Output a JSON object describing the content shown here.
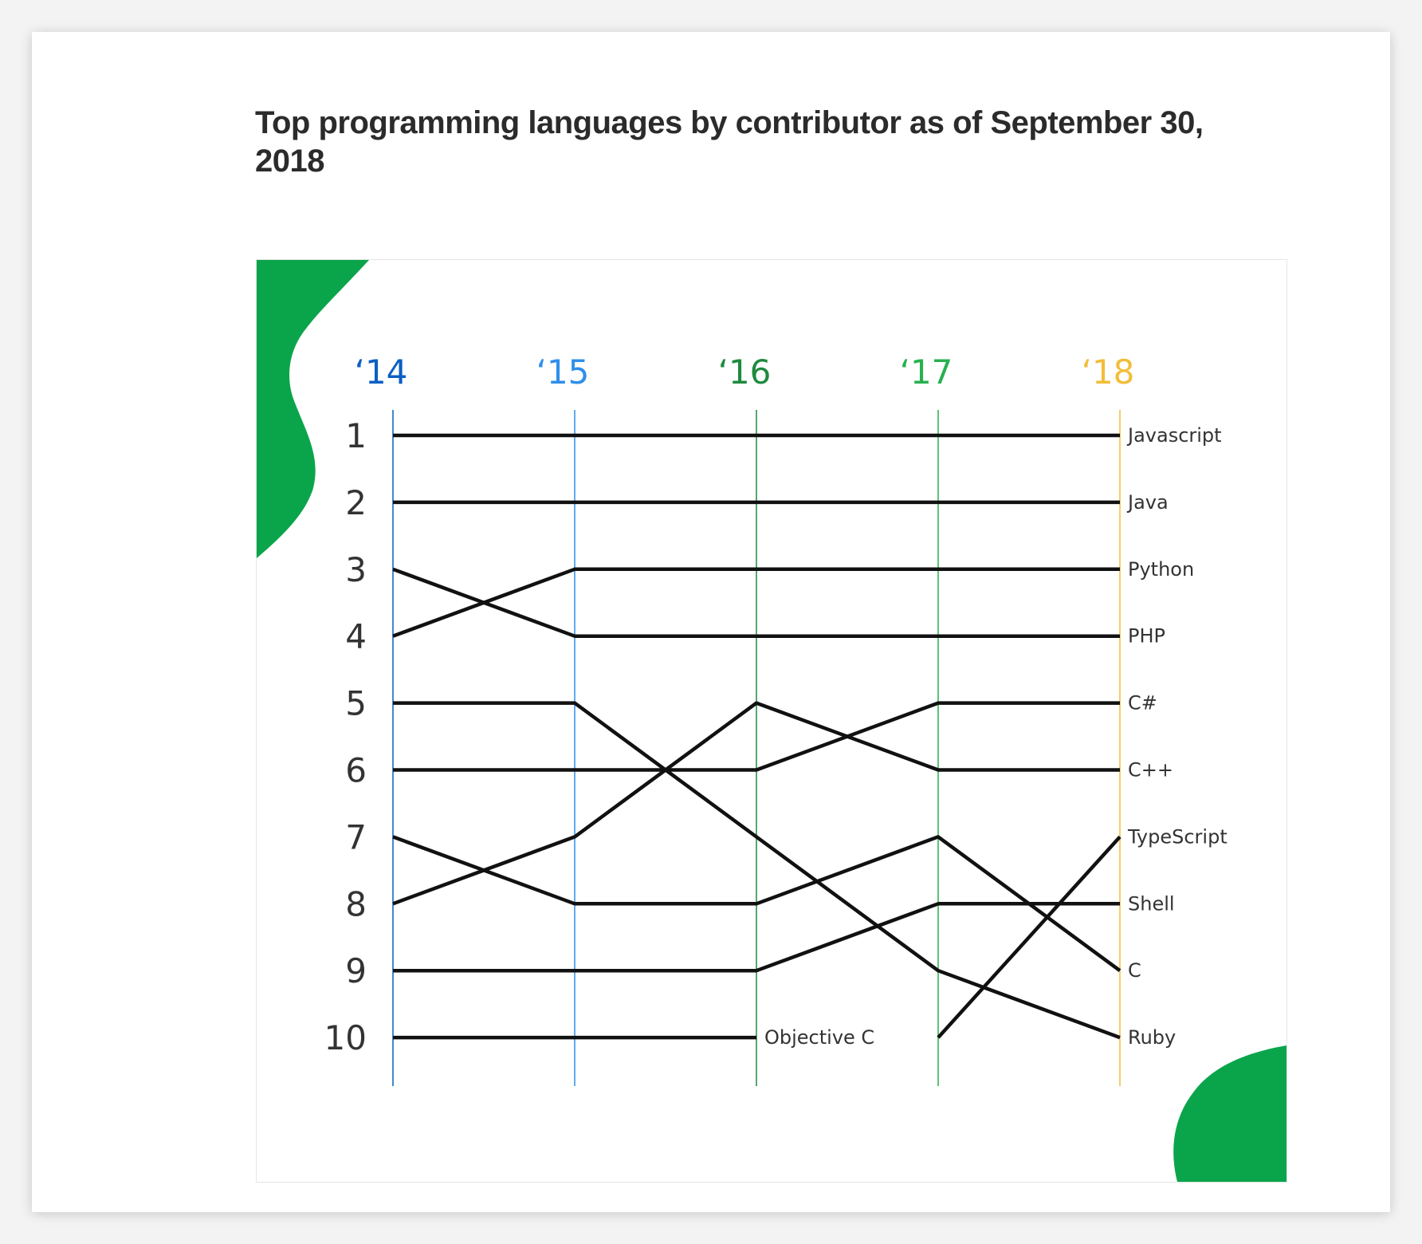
{
  "page": {
    "title": "Top programming languages by contributor as of September 30, 2018"
  },
  "colors": {
    "year_14": "#0a5fc4",
    "year_15": "#2f8fea",
    "year_16": "#1e8a3e",
    "year_17": "#27b04f",
    "year_18": "#f3bd3a",
    "line": "#111111",
    "blob": "#0aa54b",
    "rank_text": "#333333",
    "label_text": "#333333"
  },
  "chart_data": {
    "type": "line",
    "title": "Top programming languages by contributor as of September 30, 2018",
    "x": [
      "‘14",
      "‘15",
      "‘16",
      "‘17",
      "‘18"
    ],
    "y_ticks": [
      "1",
      "2",
      "3",
      "4",
      "5",
      "6",
      "7",
      "8",
      "9",
      "10"
    ],
    "y_axis": "rank, 1 at top",
    "ylim": [
      1,
      10
    ],
    "grid": false,
    "legend": "none",
    "series": [
      {
        "name": "Javascript",
        "values": [
          1,
          1,
          1,
          1,
          1
        ]
      },
      {
        "name": "Java",
        "values": [
          2,
          2,
          2,
          2,
          2
        ]
      },
      {
        "name": "Python",
        "values": [
          4,
          3,
          3,
          3,
          3
        ]
      },
      {
        "name": "PHP",
        "values": [
          3,
          4,
          4,
          4,
          4
        ]
      },
      {
        "name": "C++",
        "values": [
          8,
          7,
          5,
          6,
          6
        ]
      },
      {
        "name": "C#",
        "values": [
          6,
          6,
          6,
          5,
          5
        ]
      },
      {
        "name": "TypeScript",
        "values": [
          null,
          null,
          null,
          10,
          7
        ]
      },
      {
        "name": "Shell",
        "values": [
          9,
          9,
          9,
          8,
          8
        ]
      },
      {
        "name": "C",
        "values": [
          7,
          8,
          8,
          7,
          9
        ]
      },
      {
        "name": "Ruby",
        "values": [
          5,
          5,
          7,
          9,
          10
        ]
      },
      {
        "name": "Objective C",
        "values": [
          10,
          10,
          10,
          null,
          null
        ]
      }
    ]
  }
}
